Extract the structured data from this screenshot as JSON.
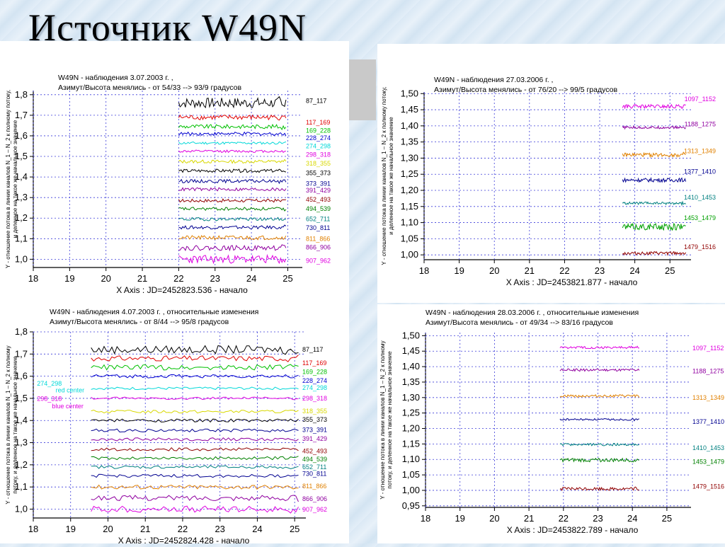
{
  "page": {
    "title": "Источник W49N"
  },
  "chart_data": [
    {
      "type": "line",
      "title": "W49N - наблюдения 3.07.2003 г. ,",
      "subtitle": "Азимут/Высота менялись - от 54/33 --> 93/9 градусов",
      "xlabel": "X Axis : JD=2452823.536 - начало",
      "ylabel_lines": [
        "Y - отношение потока в линии каналов N_1 – N_2 к полному потоку,",
        "и деленное на такое же начальное значение"
      ],
      "xlim": [
        18,
        25.4
      ],
      "ylim": [
        0.96,
        1.82
      ],
      "xticks": [
        18,
        19,
        20,
        21,
        22,
        23,
        24,
        25
      ],
      "xtick_labels": [
        "18",
        "19",
        "20",
        "21",
        "22",
        "23",
        "24",
        "25"
      ],
      "yticks": [
        1.0,
        1.1,
        1.2,
        1.3,
        1.4,
        1.5,
        1.6,
        1.7,
        1.8
      ],
      "ytick_labels": [
        "1,0",
        "1,1",
        "1,2",
        "1,3",
        "1,4",
        "1,5",
        "1,6",
        "1,7",
        "1,8"
      ],
      "grid": true,
      "x_start": 22.0,
      "x_end": 24.95,
      "series": [
        {
          "name": "87_117",
          "baseline": 1.76,
          "amp": 0.025,
          "color": "#000000",
          "label_y": 1.77
        },
        {
          "name": "117_169",
          "baseline": 1.69,
          "amp": 0.012,
          "color": "#e00000",
          "label_y": 1.665
        },
        {
          "name": "169_228",
          "baseline": 1.645,
          "amp": 0.01,
          "color": "#00c000",
          "label_y": 1.625
        },
        {
          "name": "228_274",
          "baseline": 1.61,
          "amp": 0.008,
          "color": "#0000d0",
          "label_y": 1.59
        },
        {
          "name": "274_298",
          "baseline": 1.565,
          "amp": 0.006,
          "color": "#00d8d8",
          "label_y": 1.55
        },
        {
          "name": "298_318",
          "baseline": 1.525,
          "amp": 0.006,
          "color": "#e000e0",
          "label_y": 1.508
        },
        {
          "name": "318_355",
          "baseline": 1.475,
          "amp": 0.008,
          "color": "#d8d800",
          "label_y": 1.466
        },
        {
          "name": "355_373",
          "baseline": 1.43,
          "amp": 0.008,
          "color": "#000000",
          "label_y": 1.42
        },
        {
          "name": "373_391",
          "baseline": 1.38,
          "amp": 0.008,
          "color": "#000090",
          "label_y": 1.368
        },
        {
          "name": "391_429",
          "baseline": 1.34,
          "amp": 0.008,
          "color": "#9000a0",
          "label_y": 1.335
        },
        {
          "name": "452_493",
          "baseline": 1.285,
          "amp": 0.008,
          "color": "#900000",
          "label_y": 1.29
        },
        {
          "name": "494_539",
          "baseline": 1.245,
          "amp": 0.008,
          "color": "#008000",
          "label_y": 1.245
        },
        {
          "name": "652_711",
          "baseline": 1.195,
          "amp": 0.008,
          "color": "#008080",
          "label_y": 1.195
        },
        {
          "name": "730_811",
          "baseline": 1.155,
          "amp": 0.008,
          "color": "#000090",
          "label_y": 1.152
        },
        {
          "name": "811_866",
          "baseline": 1.105,
          "amp": 0.01,
          "color": "#e08000",
          "label_y": 1.1
        },
        {
          "name": "866_906",
          "baseline": 1.055,
          "amp": 0.012,
          "color": "#9000a0",
          "label_y": 1.058
        },
        {
          "name": "907_962",
          "baseline": 1.0,
          "amp": 0.02,
          "color": "#e000e0",
          "label_y": 0.992
        }
      ]
    },
    {
      "type": "line",
      "title": "W49N - наблюдения 27.03.2006 г. ,",
      "subtitle": "Азимут/Высота менялись - от 76/20 --> 99/5 градусов",
      "xlabel": "X Axis : JD=2453821.877 - начало",
      "ylabel_lines": [
        "Y - отношение потока в линии каналов N_1 – N_2 к полному потоку,",
        "и деленное на такое же начальное значение"
      ],
      "xlim": [
        18,
        25.6
      ],
      "ylim": [
        0.985,
        1.505
      ],
      "xticks": [
        18,
        19,
        20,
        21,
        22,
        23,
        24,
        25
      ],
      "xtick_labels": [
        "18",
        "19",
        "20",
        "21",
        "22",
        "23",
        "24",
        "25"
      ],
      "yticks": [
        1.0,
        1.05,
        1.1,
        1.15,
        1.2,
        1.25,
        1.3,
        1.35,
        1.4,
        1.45,
        1.5
      ],
      "ytick_labels": [
        "1,00",
        "1,05",
        "1,10",
        "1,15",
        "1,20",
        "1,25",
        "1,30",
        "1,35",
        "1,40",
        "1,45",
        "1,50"
      ],
      "grid": true,
      "x_start": 23.65,
      "x_end": 25.45,
      "series": [
        {
          "name": "1097_1152",
          "baseline": 1.46,
          "amp": 0.006,
          "color": "#e000e0",
          "label_y": 1.483
        },
        {
          "name": "1188_1275",
          "baseline": 1.395,
          "amp": 0.004,
          "color": "#9000a0",
          "label_y": 1.405
        },
        {
          "name": "1313_1349",
          "baseline": 1.31,
          "amp": 0.006,
          "color": "#e08000",
          "label_y": 1.322
        },
        {
          "name": "1377_1410",
          "baseline": 1.232,
          "amp": 0.006,
          "color": "#000090",
          "label_y": 1.258
        },
        {
          "name": "1410_1453",
          "baseline": 1.16,
          "amp": 0.004,
          "color": "#008080",
          "label_y": 1.178
        },
        {
          "name": "1453_1479",
          "baseline": 1.087,
          "amp": 0.01,
          "color": "#00a000",
          "label_y": 1.115
        },
        {
          "name": "1479_1516",
          "baseline": 1.005,
          "amp": 0.005,
          "color": "#900000",
          "label_y": 1.025
        }
      ]
    },
    {
      "type": "line",
      "title": "W49N - наблюдения  4.07.2003 г. , относительные изменения",
      "subtitle": "Азимут/Высота менялись - от 8/44 --> 95/8 градусов",
      "xlabel": "X Axis : JD=2452824.428 - начало",
      "ylabel_lines": [
        "Y - отношение потока в линии каналов N_1 – N_2 к полному",
        "потоку, и деленное на такое же начальное значение"
      ],
      "xlim": [
        18,
        25.3
      ],
      "ylim": [
        0.96,
        1.8
      ],
      "xticks": [
        18,
        19,
        20,
        21,
        22,
        23,
        24,
        25
      ],
      "xtick_labels": [
        "18",
        "19",
        "20",
        "21",
        "22",
        "23",
        "24",
        "25"
      ],
      "yticks": [
        1.0,
        1.1,
        1.2,
        1.3,
        1.4,
        1.5,
        1.6,
        1.7,
        1.8
      ],
      "ytick_labels": [
        "1,0",
        "1,1",
        "1,2",
        "1,3",
        "1,4",
        "1,5",
        "1,6",
        "1,7",
        "1,8"
      ],
      "grid": true,
      "x_start": 19.55,
      "x_end": 25.1,
      "annotations": [
        {
          "text": "274_298 ",
          "color": "#00d8d8",
          "x": 18.1,
          "y": 1.557
        },
        {
          "text": "red center",
          "color": "#00d8d8",
          "x": 18.6,
          "y": 1.527
        },
        {
          "text": "298_318 ",
          "color": "#e000e0",
          "x": 18.1,
          "y": 1.488
        },
        {
          "text": "blue center",
          "color": "#e000e0",
          "x": 18.5,
          "y": 1.455
        }
      ],
      "series": [
        {
          "name": "87_117",
          "baseline": 1.72,
          "amp": 0.018,
          "color": "#000000",
          "label_y": 1.72
        },
        {
          "name": "117_169",
          "baseline": 1.68,
          "amp": 0.012,
          "color": "#e00000",
          "label_y": 1.66
        },
        {
          "name": "169_228",
          "baseline": 1.64,
          "amp": 0.012,
          "color": "#00c000",
          "label_y": 1.62
        },
        {
          "name": "228_274",
          "baseline": 1.6,
          "amp": 0.008,
          "color": "#0000d0",
          "label_y": 1.58
        },
        {
          "name": "274_298",
          "baseline": 1.545,
          "amp": 0.006,
          "color": "#00d8d8",
          "label_y": 1.548
        },
        {
          "name": "298_318",
          "baseline": 1.5,
          "amp": 0.006,
          "color": "#e000e0",
          "label_y": 1.5
        },
        {
          "name": "318_355",
          "baseline": 1.44,
          "amp": 0.007,
          "color": "#d8d800",
          "label_y": 1.442
        },
        {
          "name": "355_373",
          "baseline": 1.4,
          "amp": 0.007,
          "color": "#000000",
          "label_y": 1.404
        },
        {
          "name": "373_391",
          "baseline": 1.355,
          "amp": 0.007,
          "color": "#000090",
          "label_y": 1.358
        },
        {
          "name": "391_429",
          "baseline": 1.315,
          "amp": 0.007,
          "color": "#9000a0",
          "label_y": 1.318
        },
        {
          "name": "452_493",
          "baseline": 1.27,
          "amp": 0.007,
          "color": "#900000",
          "label_y": 1.262
        },
        {
          "name": "494_539",
          "baseline": 1.23,
          "amp": 0.007,
          "color": "#008000",
          "label_y": 1.225
        },
        {
          "name": "652_711",
          "baseline": 1.19,
          "amp": 0.007,
          "color": "#008080",
          "label_y": 1.19
        },
        {
          "name": "730_811",
          "baseline": 1.15,
          "amp": 0.007,
          "color": "#000090",
          "label_y": 1.16
        },
        {
          "name": "811_866",
          "baseline": 1.1,
          "amp": 0.01,
          "color": "#e08000",
          "label_y": 1.103
        },
        {
          "name": "866_906",
          "baseline": 1.05,
          "amp": 0.012,
          "color": "#9000a0",
          "label_y": 1.047
        },
        {
          "name": "907_962",
          "baseline": 1.0,
          "amp": 0.014,
          "color": "#e000e0",
          "label_y": 0.998
        }
      ]
    },
    {
      "type": "line",
      "title": "W49N - наблюдения  28.03.2006 г. , относительные изменения",
      "subtitle": "Азимут/Высота менялись - от 49/34 --> 83/16 градусов",
      "xlabel": "X Axis : JD=2453822.789 - начало",
      "ylabel_lines": [
        "Y - отношение потока в линии каналов N_1 – N_2 к полному",
        "потоку, и деленное на такое же начальное значение"
      ],
      "xlim": [
        18,
        25.7
      ],
      "ylim": [
        0.945,
        1.51
      ],
      "xticks": [
        18,
        19,
        20,
        21,
        22,
        23,
        24,
        25
      ],
      "xtick_labels": [
        "18",
        "19",
        "20",
        "21",
        "22",
        "23",
        "24",
        "25"
      ],
      "yticks": [
        0.95,
        1.0,
        1.05,
        1.1,
        1.15,
        1.2,
        1.25,
        1.3,
        1.35,
        1.4,
        1.45,
        1.5
      ],
      "ytick_labels": [
        "0,95",
        "1,00",
        "1,05",
        "1,10",
        "1,15",
        "1,20",
        "1,25",
        "1,30",
        "1,35",
        "1,40",
        "1,45",
        "1,50"
      ],
      "grid": true,
      "x_start": 21.9,
      "x_end": 24.2,
      "series": [
        {
          "name": "1097_1152",
          "baseline": 1.462,
          "amp": 0.004,
          "color": "#e000e0",
          "label_y": 1.46
        },
        {
          "name": "1188_1275",
          "baseline": 1.389,
          "amp": 0.004,
          "color": "#9000a0",
          "label_y": 1.385
        },
        {
          "name": "1313_1349",
          "baseline": 1.305,
          "amp": 0.004,
          "color": "#e08000",
          "label_y": 1.3
        },
        {
          "name": "1377_1410",
          "baseline": 1.229,
          "amp": 0.003,
          "color": "#000090",
          "label_y": 1.222
        },
        {
          "name": "1410_1453",
          "baseline": 1.148,
          "amp": 0.004,
          "color": "#008080",
          "label_y": 1.137
        },
        {
          "name": "1453_1479",
          "baseline": 1.098,
          "amp": 0.006,
          "color": "#008000",
          "label_y": 1.092
        },
        {
          "name": "1479_1516",
          "baseline": 1.005,
          "amp": 0.005,
          "color": "#900000",
          "label_y": 1.012
        }
      ]
    }
  ]
}
